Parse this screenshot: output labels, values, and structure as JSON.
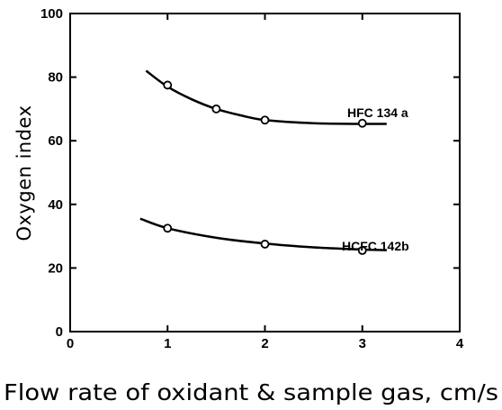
{
  "chart_data": {
    "type": "line",
    "title": "",
    "xlabel": "Flow rate of oxidant & sample gas, cm/s",
    "ylabel": "Oxygen  index",
    "xlim": [
      0,
      4
    ],
    "ylim": [
      0,
      100
    ],
    "x_ticks": [
      "0",
      "1",
      "2",
      "3",
      "4"
    ],
    "y_ticks": [
      "0",
      "20",
      "40",
      "60",
      "80",
      "100"
    ],
    "grid": false,
    "series": [
      {
        "name": "HFC 134 a",
        "points": [
          [
            1.0,
            77.5
          ],
          [
            1.5,
            70.0
          ],
          [
            2.0,
            66.5
          ],
          [
            3.0,
            65.5
          ]
        ],
        "curve": [
          [
            0.78,
            82
          ],
          [
            1.0,
            77
          ],
          [
            1.25,
            73
          ],
          [
            1.5,
            70
          ],
          [
            1.75,
            68
          ],
          [
            2.0,
            66.5
          ],
          [
            2.5,
            65.5
          ],
          [
            3.0,
            65.3
          ],
          [
            3.25,
            65.3
          ]
        ]
      },
      {
        "name": "HCFC 142b",
        "points": [
          [
            1.0,
            32.5
          ],
          [
            2.0,
            27.5
          ],
          [
            3.0,
            25.5
          ]
        ],
        "curve": [
          [
            0.72,
            35.5
          ],
          [
            1.0,
            32.5
          ],
          [
            1.5,
            29.5
          ],
          [
            2.0,
            27.7
          ],
          [
            2.5,
            26.5
          ],
          [
            3.0,
            25.8
          ],
          [
            3.25,
            25.6
          ]
        ]
      }
    ]
  }
}
